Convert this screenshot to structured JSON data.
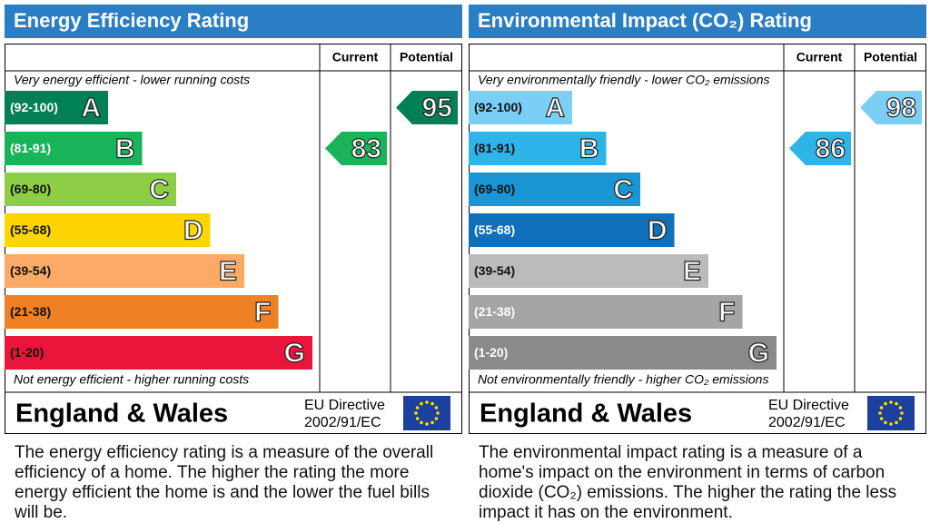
{
  "chart_data": [
    {
      "type": "epc",
      "title": "Energy Efficiency Rating",
      "title_color": "#2a7ec3",
      "columns": [
        "Current",
        "Potential"
      ],
      "top_note": "Very energy efficient - lower running costs",
      "bottom_note": "Not energy efficient - higher running costs",
      "bands": [
        {
          "range": "(92-100)",
          "letter": "A",
          "color": "#008054",
          "text_color": "#ffffff"
        },
        {
          "range": "(81-91)",
          "letter": "B",
          "color": "#19b459",
          "text_color": "#ffffff"
        },
        {
          "range": "(69-80)",
          "letter": "C",
          "color": "#8dce46",
          "text_color": "#111111"
        },
        {
          "range": "(55-68)",
          "letter": "D",
          "color": "#ffd500",
          "text_color": "#111111"
        },
        {
          "range": "(39-54)",
          "letter": "E",
          "color": "#fcaa65",
          "text_color": "#111111"
        },
        {
          "range": "(21-38)",
          "letter": "F",
          "color": "#ef8023",
          "text_color": "#111111"
        },
        {
          "range": "(1-20)",
          "letter": "G",
          "color": "#e9153b",
          "text_color": "#111111"
        }
      ],
      "current": 83,
      "potential": 95,
      "region": "England & Wales",
      "directive": [
        "EU Directive",
        "2002/91/EC"
      ],
      "description": "The energy efficiency rating is a measure of the overall efficiency of a home. The higher the rating the more energy efficient the home is and the lower the fuel bills will be."
    },
    {
      "type": "epc",
      "title": "Environmental Impact (CO₂) Rating",
      "title_color": "#2a7ec3",
      "columns": [
        "Current",
        "Potential"
      ],
      "top_note": "Very environmentally friendly - lower CO₂ emissions",
      "bottom_note": "Not environmentally friendly - higher CO₂ emissions",
      "bands": [
        {
          "range": "(92-100)",
          "letter": "A",
          "color": "#7bcff5",
          "text_color": "#111111"
        },
        {
          "range": "(81-91)",
          "letter": "B",
          "color": "#2fb4ea",
          "text_color": "#111111"
        },
        {
          "range": "(69-80)",
          "letter": "C",
          "color": "#1a96d4",
          "text_color": "#111111"
        },
        {
          "range": "(55-68)",
          "letter": "D",
          "color": "#0f6fb8",
          "text_color": "#ffffff"
        },
        {
          "range": "(39-54)",
          "letter": "E",
          "color": "#bbbbbb",
          "text_color": "#111111"
        },
        {
          "range": "(21-38)",
          "letter": "F",
          "color": "#a5a5a5",
          "text_color": "#ffffff"
        },
        {
          "range": "(1-20)",
          "letter": "G",
          "color": "#8a8a8a",
          "text_color": "#ffffff"
        }
      ],
      "current": 86,
      "potential": 98,
      "region": "England & Wales",
      "directive": [
        "EU Directive",
        "2002/91/EC"
      ],
      "description": "The environmental impact rating is a measure of a home's impact on the environment in terms of carbon dioxide (CO₂) emissions. The higher the rating the less impact it has on the environment."
    }
  ]
}
